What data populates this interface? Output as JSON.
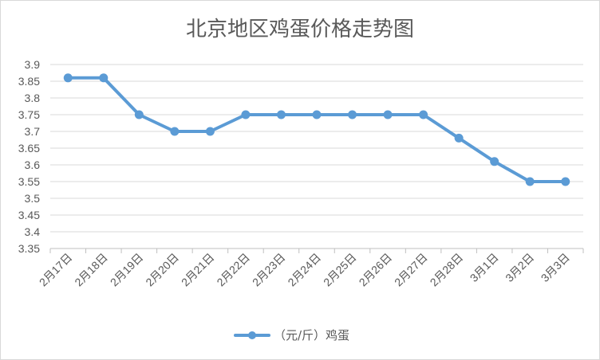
{
  "chart_data": {
    "type": "line",
    "title": "北京地区鸡蛋价格走势图",
    "xlabel": "",
    "ylabel": "",
    "categories": [
      "2月17日",
      "2月18日",
      "2月19日",
      "2月20日",
      "2月21日",
      "2月22日",
      "2月23日",
      "2月24日",
      "2月25日",
      "2月26日",
      "2月27日",
      "2月28日",
      "3月1日",
      "3月2日",
      "3月3日"
    ],
    "series": [
      {
        "name": "（元/斤）鸡蛋",
        "values": [
          3.86,
          3.86,
          3.75,
          3.7,
          3.7,
          3.75,
          3.75,
          3.75,
          3.75,
          3.75,
          3.75,
          3.68,
          3.61,
          3.55,
          3.55
        ],
        "color": "#5b9bd5"
      }
    ],
    "ylim": [
      3.35,
      3.9
    ],
    "yticks": [
      "3.35",
      "3.4",
      "3.45",
      "3.5",
      "3.55",
      "3.6",
      "3.65",
      "3.7",
      "3.75",
      "3.8",
      "3.85",
      "3.9"
    ],
    "grid": true,
    "legend_position": "bottom"
  }
}
